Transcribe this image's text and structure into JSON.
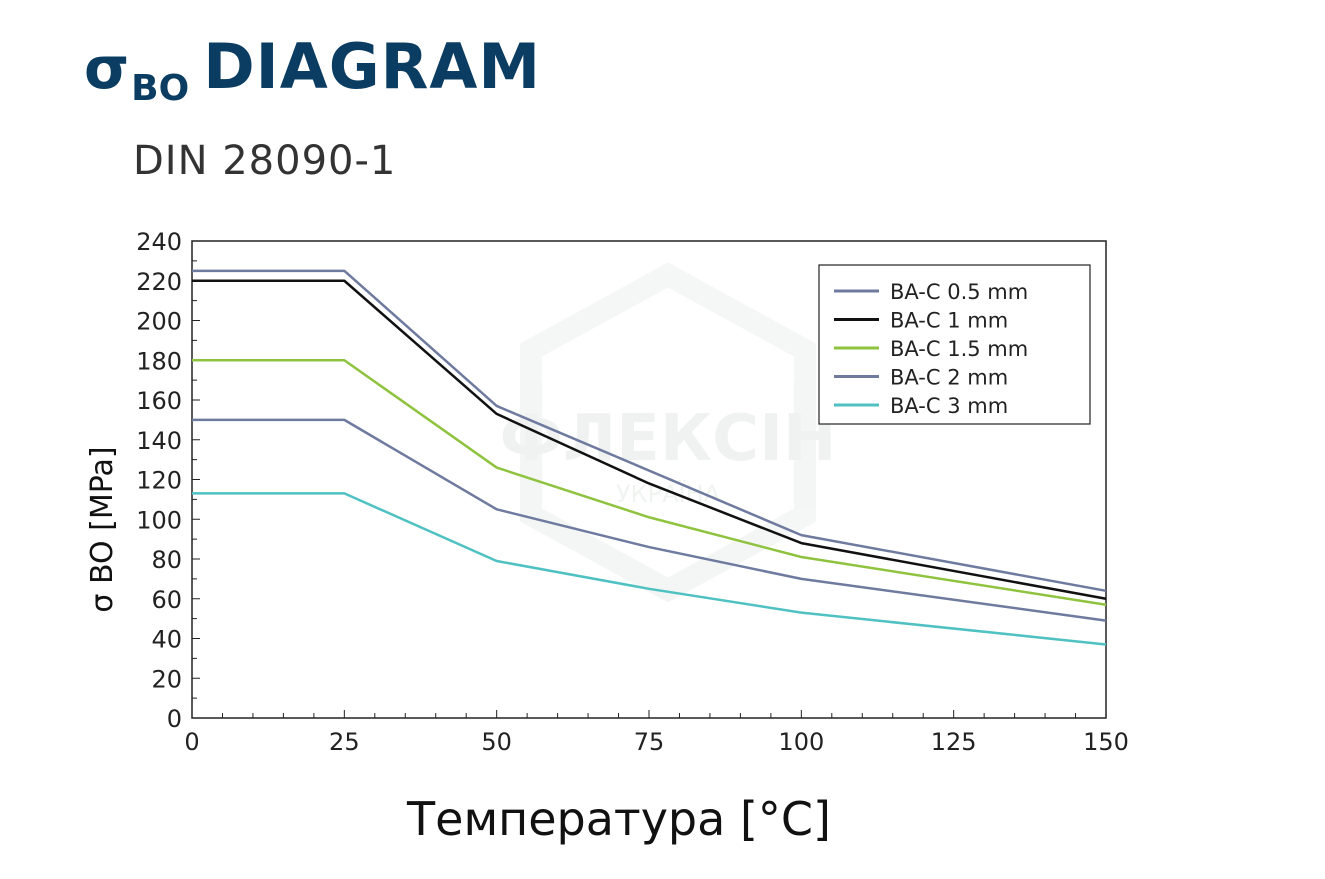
{
  "header": {
    "sigma": "σ",
    "sub": "BO",
    "title": "DIAGRAM",
    "subtitle": "DIN 28090-1"
  },
  "watermark": {
    "text": "ФЛЕКСІН",
    "sub": "УКРАЇНА"
  },
  "colors": {
    "title": "#0b3c61",
    "axis": "#222222"
  },
  "chart_data": {
    "type": "line",
    "xlabel": "Температура [°C]",
    "ylabel": "σ BO [MPa]",
    "xlim": [
      0,
      150
    ],
    "ylim": [
      0,
      240
    ],
    "xticks": [
      0,
      25,
      50,
      75,
      100,
      125,
      150
    ],
    "yticks": [
      0,
      20,
      40,
      60,
      80,
      100,
      120,
      140,
      160,
      180,
      200,
      220,
      240
    ],
    "grid": false,
    "legend_position": "top-right",
    "series": [
      {
        "name": "BA-C 0.5 mm",
        "color": "#6f7a9f",
        "x": [
          0,
          25,
          50,
          100,
          150
        ],
        "y": [
          225,
          225,
          157,
          92,
          64
        ]
      },
      {
        "name": "BA-C 1 mm",
        "color": "#111111",
        "x": [
          0,
          25,
          50,
          75,
          100,
          150
        ],
        "y": [
          220,
          220,
          153,
          118,
          88,
          60
        ]
      },
      {
        "name": "BA-C 1.5 mm",
        "color": "#8fc33f",
        "x": [
          0,
          25,
          50,
          75,
          100,
          150
        ],
        "y": [
          180,
          180,
          126,
          101,
          81,
          57
        ]
      },
      {
        "name": "BA-C 2 mm",
        "color": "#6f7a9f",
        "x": [
          0,
          25,
          50,
          75,
          100,
          150
        ],
        "y": [
          150,
          150,
          105,
          86,
          70,
          49
        ]
      },
      {
        "name": "BA-C 3 mm",
        "color": "#4fc1c2",
        "x": [
          0,
          25,
          50,
          75,
          100,
          150
        ],
        "y": [
          113,
          113,
          79,
          65,
          53,
          37
        ]
      }
    ]
  }
}
